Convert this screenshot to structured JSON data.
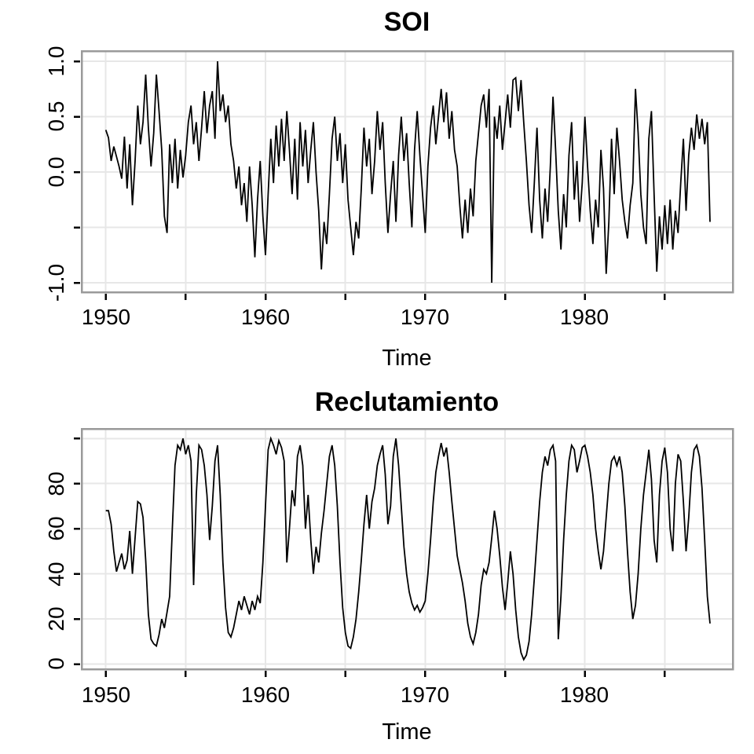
{
  "style": {
    "background": "#ffffff",
    "line_color": "#000000",
    "grid_color": "#e7e7e7",
    "border_color": "#9a9a9a",
    "tick_color": "#000000",
    "text_color": "#000000"
  },
  "chart_data": [
    {
      "id": "soi",
      "type": "line",
      "title": "SOI",
      "xlabel": "Time",
      "ylabel": "",
      "grid": true,
      "legend": "none",
      "x_unit": "year",
      "x_start": 1950.0,
      "x_step": 0.16667,
      "n_points": 228,
      "xlim": [
        1948.49,
        1989.26
      ],
      "ylim": [
        -1.085,
        1.092
      ],
      "x_ticks": [
        1950,
        1955,
        1960,
        1965,
        1970,
        1975,
        1980,
        1985
      ],
      "x_tick_labels": [
        "1950",
        "1960",
        "1970",
        "1980"
      ],
      "x_labeled_ticks": [
        1950,
        1960,
        1970,
        1980
      ],
      "y_ticks": [
        1.0,
        0.5,
        0.0,
        -0.5,
        -1.0
      ],
      "y_tick_labels": [
        "1.0",
        "0.5",
        "0.0",
        "-1.0"
      ],
      "y_labeled_ticks": [
        1.0,
        0.5,
        0.0,
        -1.0
      ],
      "values": [
        0.38,
        0.31,
        0.1,
        0.23,
        0.14,
        0.05,
        -0.06,
        0.32,
        -0.15,
        0.25,
        -0.3,
        0.1,
        0.6,
        0.25,
        0.45,
        0.88,
        0.4,
        0.05,
        0.35,
        0.88,
        0.55,
        0.2,
        -0.4,
        -0.55,
        0.25,
        -0.1,
        0.3,
        -0.15,
        0.2,
        -0.05,
        0.15,
        0.45,
        0.6,
        0.25,
        0.45,
        0.1,
        0.4,
        0.73,
        0.35,
        0.6,
        0.73,
        0.3,
        1.0,
        0.55,
        0.7,
        0.45,
        0.6,
        0.25,
        0.1,
        -0.15,
        0.05,
        -0.3,
        -0.1,
        -0.45,
        0.05,
        -0.3,
        -0.77,
        -0.25,
        0.1,
        -0.4,
        -0.75,
        -0.2,
        0.3,
        -0.1,
        0.42,
        0.05,
        0.48,
        0.1,
        0.55,
        0.2,
        -0.2,
        0.3,
        -0.25,
        0.45,
        0.05,
        0.38,
        -0.1,
        0.2,
        0.45,
        0.0,
        -0.35,
        -0.88,
        -0.45,
        -0.65,
        -0.2,
        0.3,
        0.5,
        0.1,
        0.35,
        -0.1,
        0.25,
        -0.25,
        -0.5,
        -0.75,
        -0.45,
        -0.6,
        -0.15,
        0.4,
        0.05,
        0.3,
        -0.2,
        0.1,
        0.55,
        0.2,
        0.45,
        -0.1,
        -0.55,
        -0.2,
        0.1,
        -0.45,
        0.15,
        0.5,
        0.1,
        0.35,
        -0.1,
        -0.5,
        0.2,
        0.55,
        0.15,
        -0.2,
        -0.55,
        0.05,
        0.4,
        0.6,
        0.25,
        0.5,
        0.75,
        0.45,
        0.72,
        0.3,
        0.55,
        0.2,
        0.05,
        -0.3,
        -0.6,
        -0.25,
        -0.55,
        -0.15,
        -0.4,
        0.1,
        0.35,
        0.6,
        0.7,
        0.4,
        0.75,
        -1.0,
        0.5,
        0.3,
        0.6,
        0.2,
        0.45,
        0.7,
        0.4,
        0.83,
        0.85,
        0.55,
        0.83,
        0.45,
        0.1,
        -0.3,
        -0.55,
        -0.1,
        0.4,
        -0.25,
        -0.6,
        -0.15,
        -0.45,
        0.05,
        0.68,
        0.2,
        -0.35,
        -0.7,
        -0.2,
        -0.5,
        0.15,
        0.45,
        -0.25,
        0.1,
        -0.45,
        -0.1,
        0.5,
        0.05,
        -0.35,
        -0.65,
        -0.25,
        -0.5,
        0.2,
        -0.15,
        -0.92,
        -0.45,
        0.3,
        -0.2,
        0.4,
        0.1,
        -0.25,
        -0.45,
        -0.6,
        -0.3,
        -0.1,
        0.75,
        0.35,
        -0.2,
        -0.5,
        -0.65,
        0.3,
        0.55,
        -0.2,
        -0.9,
        -0.4,
        -0.7,
        -0.3,
        -0.65,
        -0.25,
        -0.7,
        -0.35,
        -0.55,
        -0.1,
        0.3,
        -0.35,
        0.15,
        0.4,
        0.2,
        0.52,
        0.3,
        0.48,
        0.25,
        0.45,
        -0.45
      ]
    },
    {
      "id": "reclutamiento",
      "type": "line",
      "title": "Reclutamiento",
      "xlabel": "Time",
      "ylabel": "",
      "grid": true,
      "legend": "none",
      "x_unit": "year",
      "x_start": 1950.0,
      "x_step": 0.16667,
      "n_points": 228,
      "xlim": [
        1948.49,
        1989.26
      ],
      "ylim": [
        -2.26,
        104.27
      ],
      "x_ticks": [
        1950,
        1955,
        1960,
        1965,
        1970,
        1975,
        1980,
        1985
      ],
      "x_tick_labels": [
        "1950",
        "1960",
        "1970",
        "1980"
      ],
      "x_labeled_ticks": [
        1950,
        1960,
        1970,
        1980
      ],
      "y_ticks": [
        0,
        20,
        40,
        60,
        80,
        100
      ],
      "y_tick_labels": [
        "80",
        "60",
        "40",
        "20",
        "0"
      ],
      "y_labeled_ticks": [
        80,
        60,
        40,
        20,
        0
      ],
      "values": [
        68,
        68,
        62,
        50,
        41,
        45,
        49,
        42,
        46,
        59,
        40,
        56,
        72,
        71,
        65,
        46,
        22,
        11,
        9,
        8,
        13,
        20,
        16,
        23,
        30,
        60,
        88,
        97,
        95,
        100,
        93,
        97,
        90,
        35,
        75,
        97,
        95,
        88,
        75,
        55,
        70,
        90,
        97,
        75,
        45,
        25,
        14,
        12,
        16,
        22,
        28,
        24,
        30,
        26,
        22,
        28,
        24,
        30,
        27,
        45,
        70,
        95,
        100,
        97,
        93,
        99,
        96,
        90,
        45,
        60,
        77,
        70,
        92,
        97,
        88,
        60,
        75,
        55,
        40,
        52,
        45,
        58,
        68,
        80,
        92,
        97,
        88,
        70,
        45,
        25,
        14,
        8,
        7,
        12,
        20,
        32,
        46,
        62,
        75,
        60,
        72,
        78,
        88,
        93,
        97,
        84,
        62,
        70,
        92,
        100,
        88,
        70,
        52,
        40,
        32,
        27,
        24,
        26,
        23,
        25,
        28,
        40,
        55,
        72,
        85,
        92,
        98,
        92,
        96,
        85,
        72,
        60,
        48,
        42,
        36,
        28,
        18,
        12,
        9,
        14,
        22,
        35,
        42,
        40,
        45,
        56,
        68,
        60,
        48,
        34,
        24,
        36,
        50,
        40,
        24,
        12,
        5,
        2,
        4,
        10,
        22,
        38,
        55,
        72,
        85,
        92,
        88,
        95,
        97,
        90,
        11,
        30,
        55,
        75,
        90,
        97,
        95,
        85,
        90,
        96,
        97,
        92,
        85,
        75,
        60,
        50,
        42,
        50,
        65,
        80,
        90,
        92,
        88,
        92,
        85,
        70,
        50,
        32,
        20,
        26,
        40,
        60,
        75,
        85,
        95,
        82,
        55,
        45,
        75,
        90,
        96,
        85,
        60,
        50,
        80,
        93,
        90,
        72,
        50,
        65,
        85,
        95,
        97,
        92,
        78,
        55,
        30,
        18
      ]
    }
  ]
}
